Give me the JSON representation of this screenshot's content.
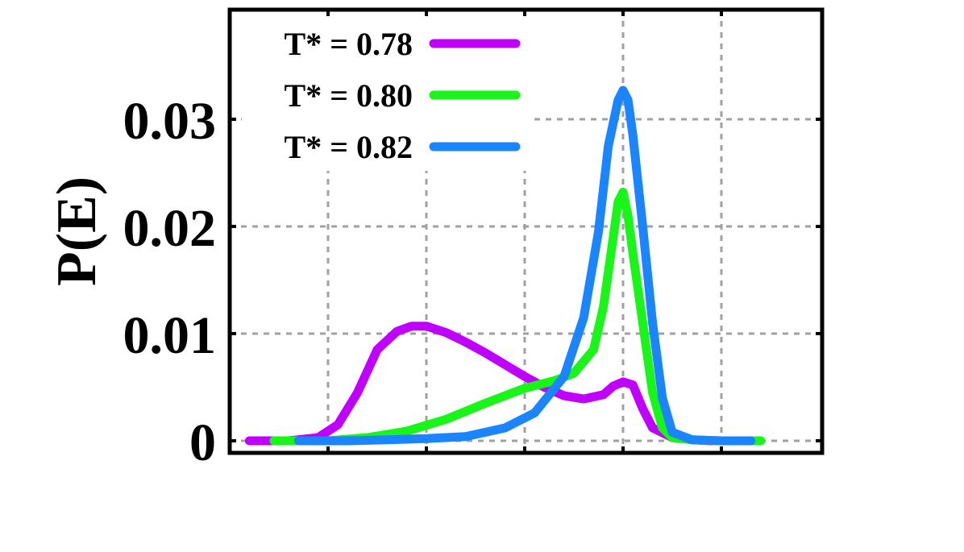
{
  "chart_data": {
    "type": "line",
    "title": "",
    "xlabel": "",
    "ylabel": "P(E)",
    "ylim": [
      0,
      0.04
    ],
    "yticks": [
      {
        "value": 0,
        "label": "0"
      },
      {
        "value": 0.01,
        "label": "0.01"
      },
      {
        "value": 0.02,
        "label": "0.02"
      },
      {
        "value": 0.03,
        "label": "0.03"
      }
    ],
    "xlim": [
      0,
      6
    ],
    "x_tick_positions": [
      1,
      2,
      3,
      4,
      5
    ],
    "x_tick_labels_visible": false,
    "grid": true,
    "legend_position": "top-left",
    "series": [
      {
        "name": "T* = 0.78",
        "color": "#c000ff",
        "x": [
          0.2,
          0.6,
          0.9,
          1.1,
          1.3,
          1.5,
          1.7,
          1.85,
          2.0,
          2.2,
          2.4,
          2.6,
          2.8,
          3.0,
          3.2,
          3.4,
          3.6,
          3.8,
          3.9,
          4.0,
          4.1,
          4.2,
          4.3,
          4.5,
          4.7,
          4.9
        ],
        "y": [
          0,
          0,
          0.0003,
          0.0015,
          0.0045,
          0.0085,
          0.0102,
          0.0107,
          0.0107,
          0.0101,
          0.0092,
          0.0082,
          0.0071,
          0.006,
          0.005,
          0.0042,
          0.0039,
          0.0043,
          0.0051,
          0.0055,
          0.0052,
          0.003,
          0.0012,
          0.0003,
          0.0001,
          0
        ]
      },
      {
        "name": "T* = 0.80",
        "color": "#19f519",
        "x": [
          0.45,
          1.0,
          1.4,
          1.8,
          2.2,
          2.6,
          3.0,
          3.3,
          3.5,
          3.7,
          3.8,
          3.9,
          3.95,
          4.0,
          4.05,
          4.1,
          4.2,
          4.3,
          4.4,
          4.5,
          4.7,
          5.0,
          5.4
        ],
        "y": [
          0,
          0,
          0.0003,
          0.0009,
          0.002,
          0.0035,
          0.0049,
          0.0056,
          0.0063,
          0.0085,
          0.0125,
          0.019,
          0.0223,
          0.0232,
          0.021,
          0.0175,
          0.011,
          0.0045,
          0.0012,
          0.0003,
          0.0001,
          0,
          0
        ]
      },
      {
        "name": "T* = 0.82",
        "color": "#1a85ff",
        "x": [
          0.7,
          1.2,
          1.6,
          2.0,
          2.4,
          2.8,
          3.1,
          3.4,
          3.6,
          3.75,
          3.85,
          3.95,
          4.0,
          4.05,
          4.1,
          4.2,
          4.3,
          4.4,
          4.5,
          4.7,
          5.0,
          5.3
        ],
        "y": [
          0,
          0,
          0.0001,
          0.0002,
          0.0004,
          0.0012,
          0.0026,
          0.006,
          0.0115,
          0.0195,
          0.0275,
          0.0318,
          0.0327,
          0.0318,
          0.0285,
          0.02,
          0.011,
          0.004,
          0.0008,
          0.0001,
          0,
          0
        ]
      }
    ]
  }
}
